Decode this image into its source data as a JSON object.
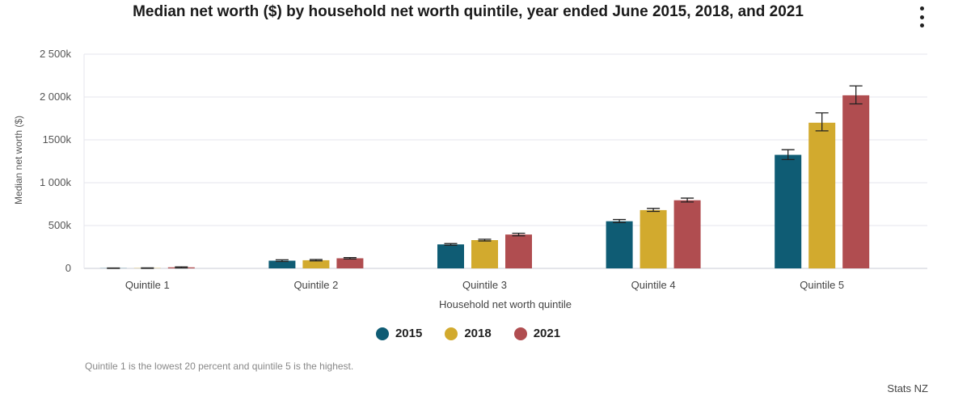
{
  "menu_icon": "kebab-menu-icon",
  "footnote": "Quintile 1 is the lowest 20 percent and quintile 5 is the highest.",
  "credit": "Stats NZ",
  "chart_data": {
    "type": "bar",
    "title": "Median net worth ($) by household net worth quintile, year ended June 2015, 2018, and 2021",
    "xlabel": "Household net worth quintile",
    "ylabel": "Median net worth ($)",
    "ylim": [
      0,
      2500000
    ],
    "yticks": [
      {
        "value": 0,
        "label": "0"
      },
      {
        "value": 500000,
        "label": "500k"
      },
      {
        "value": 1000000,
        "label": "1 000k"
      },
      {
        "value": 1500000,
        "label": "1500k"
      },
      {
        "value": 2000000,
        "label": "2 000k"
      },
      {
        "value": 2500000,
        "label": "2 500k"
      }
    ],
    "categories": [
      "Quintile 1",
      "Quintile 2",
      "Quintile 3",
      "Quintile 4",
      "Quintile 5"
    ],
    "grid": true,
    "legend_position": "bottom",
    "error_bars": true,
    "series": [
      {
        "name": "2015",
        "color": "#0f5c74",
        "values": [
          2000,
          90000,
          280000,
          550000,
          1325000
        ],
        "errors": [
          [
            0,
            4000
          ],
          [
            80000,
            100000
          ],
          [
            270000,
            290000
          ],
          [
            535000,
            570000
          ],
          [
            1270000,
            1385000
          ]
        ]
      },
      {
        "name": "2018",
        "color": "#d2aa2e",
        "values": [
          3000,
          95000,
          330000,
          680000,
          1700000
        ],
        "errors": [
          [
            0,
            6000
          ],
          [
            87000,
            103000
          ],
          [
            320000,
            340000
          ],
          [
            665000,
            700000
          ],
          [
            1605000,
            1815000
          ]
        ]
      },
      {
        "name": "2021",
        "color": "#b04d50",
        "values": [
          12000,
          118000,
          395000,
          795000,
          2020000
        ],
        "errors": [
          [
            5000,
            18000
          ],
          [
            110000,
            126000
          ],
          [
            380000,
            410000
          ],
          [
            775000,
            820000
          ],
          [
            1920000,
            2130000
          ]
        ]
      }
    ]
  }
}
